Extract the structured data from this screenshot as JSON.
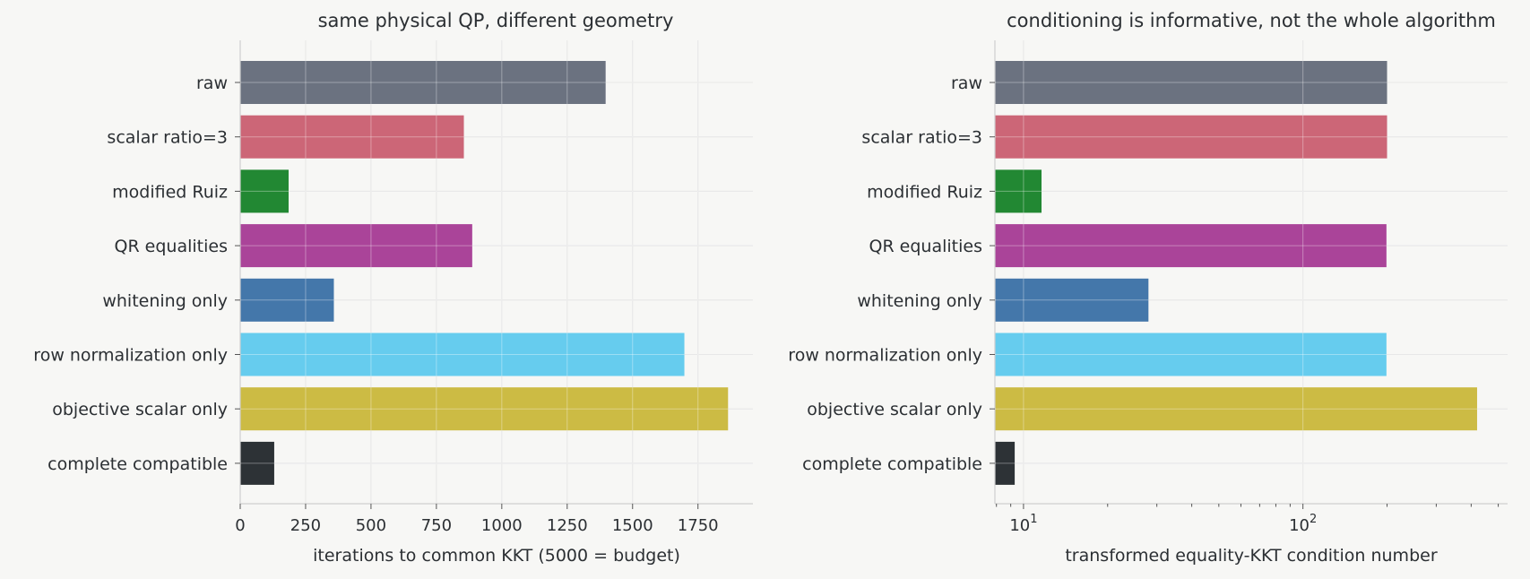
{
  "chart_data": [
    {
      "type": "bar",
      "orientation": "horizontal",
      "title": "same physical QP, different geometry",
      "xlabel": "iterations to common KKT (5000 = budget)",
      "ylabel": "",
      "xlim": [
        0,
        1960
      ],
      "xticks": [
        0,
        250,
        500,
        750,
        1000,
        1250,
        1500,
        1750
      ],
      "xscale": "linear",
      "grid": true,
      "categories": [
        "raw",
        "scalar ratio=3",
        "modified Ruiz",
        "QR equalities",
        "whitening only",
        "row normalization only",
        "objective scalar only",
        "complete compatible"
      ],
      "values": [
        1397,
        855,
        185,
        887,
        358,
        1698,
        1865,
        130
      ],
      "colors": [
        "#6b7280",
        "#cc6677",
        "#228833",
        "#aa4499",
        "#4477aa",
        "#66ccee",
        "#ccbb44",
        "#2d3236"
      ]
    },
    {
      "type": "bar",
      "orientation": "horizontal",
      "title": "conditioning is informative, not the whole algorithm",
      "xlabel": "transformed equality-KKT condition number",
      "ylabel": "",
      "xscale": "log",
      "xlim": [
        7.9,
        540
      ],
      "xticks": [
        10,
        100
      ],
      "grid": true,
      "categories": [
        "raw",
        "scalar ratio=3",
        "modified Ruiz",
        "QR equalities",
        "whitening only",
        "row normalization only",
        "objective scalar only",
        "complete compatible"
      ],
      "values": [
        200,
        200,
        11.6,
        199,
        28,
        199,
        420,
        9.3
      ],
      "colors": [
        "#6b7280",
        "#cc6677",
        "#228833",
        "#aa4499",
        "#4477aa",
        "#66ccee",
        "#ccbb44",
        "#2d3236"
      ]
    }
  ]
}
